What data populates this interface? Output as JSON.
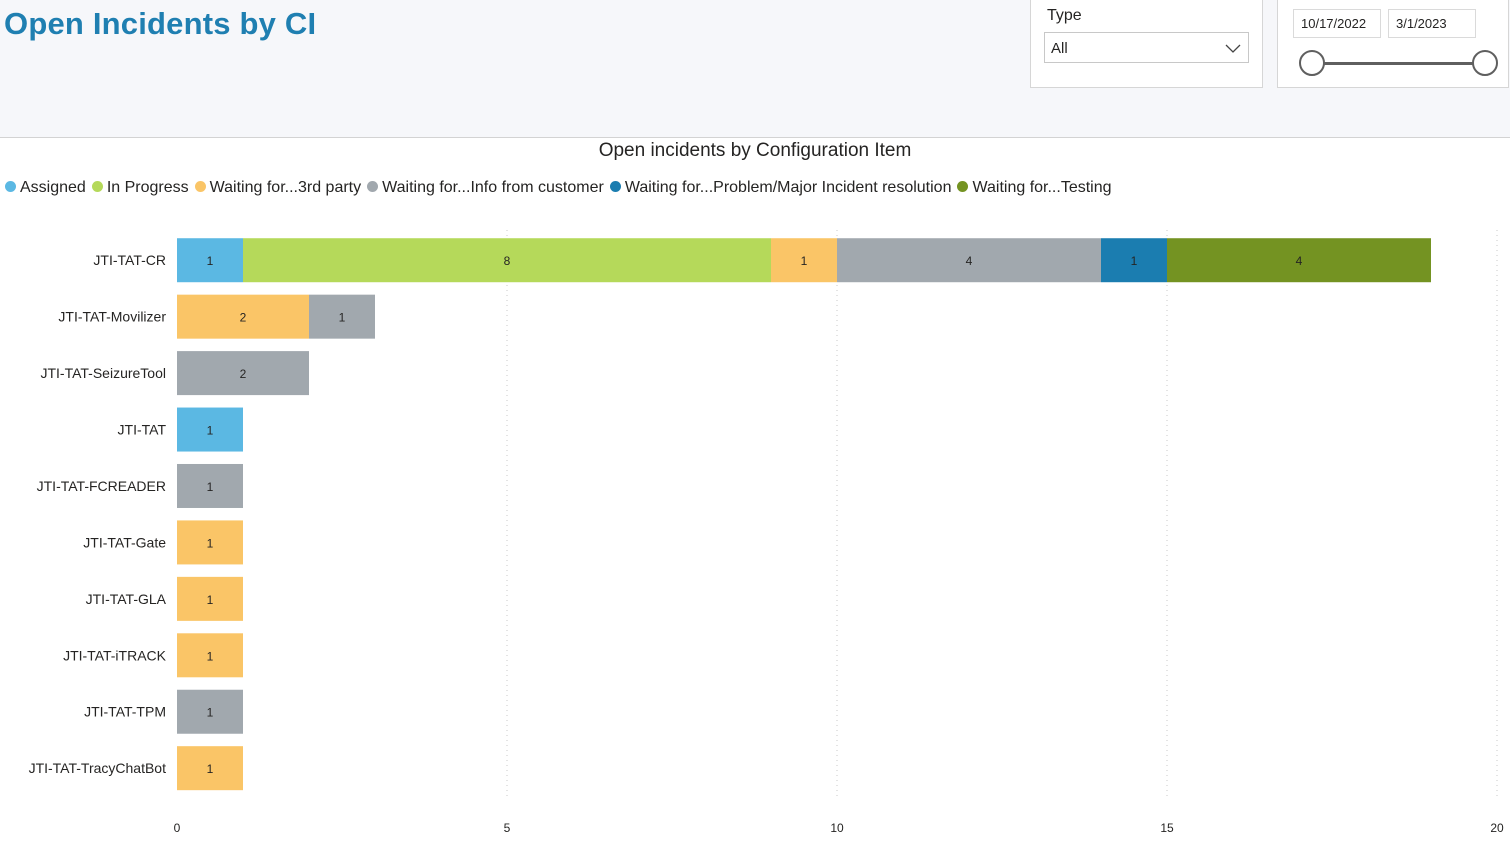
{
  "page_title": "Open Incidents by CI",
  "type_slicer": {
    "label": "Type",
    "selected": "All"
  },
  "date_slicer": {
    "start": "10/17/2022",
    "end": "3/1/2023"
  },
  "chart_data": {
    "type": "bar",
    "orientation": "horizontal",
    "stacked": true,
    "title": "Open incidents by Configuration Item",
    "categories": [
      "JTI-TAT-CR",
      "JTI-TAT-Movilizer",
      "JTI-TAT-SeizureTool",
      "JTI-TAT",
      "JTI-TAT-FCREADER",
      "JTI-TAT-Gate",
      "JTI-TAT-GLA",
      "JTI-TAT-iTRACK",
      "JTI-TAT-TPM",
      "JTI-TAT-TracyChatBot"
    ],
    "series": [
      {
        "name": "Assigned",
        "color": "#5bb8e3",
        "values": [
          1,
          0,
          0,
          1,
          0,
          0,
          0,
          0,
          0,
          0
        ]
      },
      {
        "name": "In Progress",
        "color": "#b5d95a",
        "values": [
          8,
          0,
          0,
          0,
          0,
          0,
          0,
          0,
          0,
          0
        ]
      },
      {
        "name": "Waiting for...3rd party",
        "color": "#fac567",
        "values": [
          1,
          2,
          0,
          0,
          0,
          1,
          1,
          1,
          0,
          1
        ]
      },
      {
        "name": "Waiting for...Info from customer",
        "color": "#a1a8ae",
        "values": [
          4,
          1,
          2,
          0,
          1,
          0,
          0,
          0,
          1,
          0
        ]
      },
      {
        "name": "Waiting for...Problem/Major Incident resolution",
        "color": "#1b7db0",
        "values": [
          1,
          0,
          0,
          0,
          0,
          0,
          0,
          0,
          0,
          0
        ]
      },
      {
        "name": "Waiting for...Testing",
        "color": "#749322",
        "values": [
          4,
          0,
          0,
          0,
          0,
          0,
          0,
          0,
          0,
          0
        ]
      }
    ],
    "xlim": [
      0,
      20
    ],
    "xticks": [
      0,
      5,
      10,
      15,
      20
    ],
    "legend_position": "top-left",
    "grid": "vertical dotted"
  }
}
